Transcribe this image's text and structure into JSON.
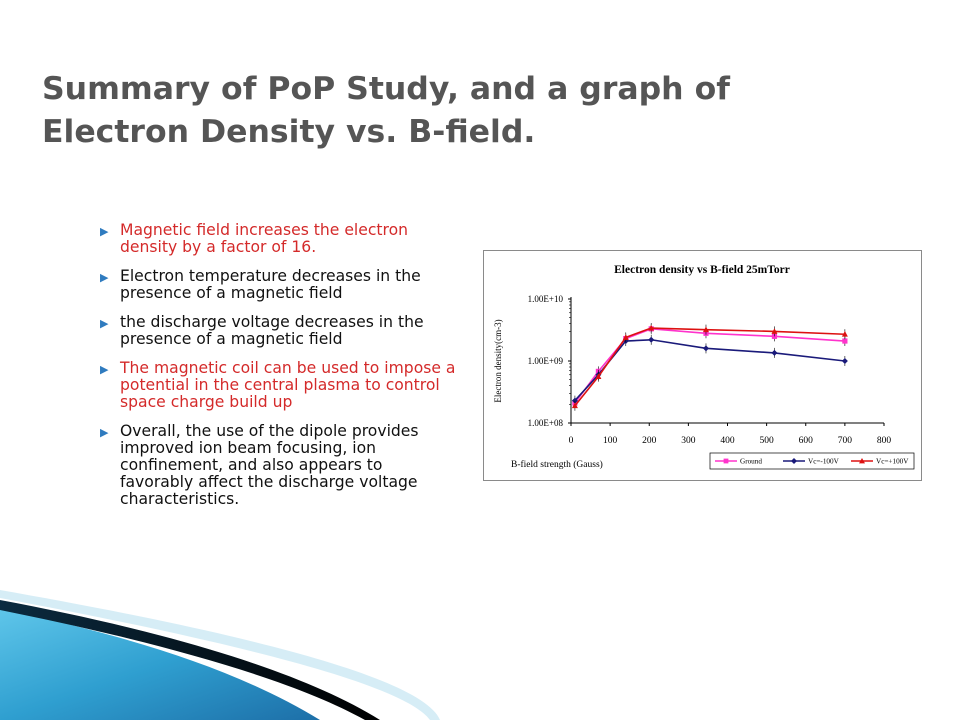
{
  "slide": {
    "title_line1": "Summary of PoP Study, and  a graph of",
    "title_line2": "Electron Density vs. B-field.",
    "bullets": [
      {
        "text": "Magnetic field increases the electron density by a factor of 16.",
        "color": "#d42a2a"
      },
      {
        "text": "Electron temperature decreases in the presence of a magnetic field",
        "color": "#111111"
      },
      {
        "text": "the discharge voltage decreases in the presence of a magnetic field",
        "color": "#111111"
      },
      {
        "text": "The magnetic coil can be used to impose a potential in the central plasma to control space charge build up",
        "color": "#d42a2a"
      },
      {
        "text": "Overall, the use of the dipole provides improved ion beam focusing, ion confinement, and also appears to favorably affect the discharge voltage characteristics.",
        "color": "#111111"
      }
    ],
    "bullet_icon": "triangle-right-icon",
    "accent_color": "#2f7bbf"
  },
  "chart_data": {
    "type": "line",
    "title": "Electron density vs B-field 25mTorr",
    "xlabel": "B-field strength (Gauss)",
    "ylabel": "Electron density(cm-3)",
    "x_ticks": [
      "0",
      "100",
      "200",
      "300",
      "400",
      "500",
      "600",
      "700",
      "800"
    ],
    "xlim": [
      0,
      800
    ],
    "y_scale": "log",
    "ylim": [
      100000000,
      10000000000
    ],
    "y_ticks": [
      {
        "value": 100000000,
        "label": "1.00E+08"
      },
      {
        "value": 1000000000,
        "label": "1.00E+09"
      },
      {
        "value": 10000000000,
        "label": "1.00E+10"
      }
    ],
    "grid": false,
    "legend_position": "bottom-right",
    "series": [
      {
        "name": "Ground",
        "color": "#ff33cc",
        "marker": "square",
        "x": [
          10,
          70,
          140,
          205,
          345,
          520,
          700
        ],
        "y": [
          210000000,
          680000000,
          2300000000,
          3300000000,
          2800000000,
          2500000000,
          2100000000
        ]
      },
      {
        "name": "Vc=-100V",
        "color": "#1a1a7a",
        "marker": "diamond",
        "x": [
          10,
          70,
          140,
          205,
          345,
          520,
          700
        ],
        "y": [
          230000000,
          600000000,
          2100000000,
          2200000000,
          1600000000,
          1350000000,
          1000000000
        ]
      },
      {
        "name": "Vc=+100V",
        "color": "#dd1111",
        "marker": "triangle",
        "x": [
          10,
          70,
          140,
          205,
          345,
          520,
          700
        ],
        "y": [
          190000000,
          560000000,
          2400000000,
          3400000000,
          3200000000,
          3000000000,
          2700000000
        ]
      }
    ]
  }
}
